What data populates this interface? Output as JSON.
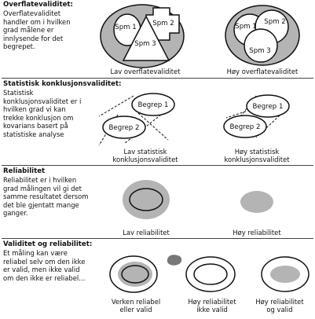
{
  "sections": [
    {
      "heading": "Overflatevaliditet:",
      "body": [
        "Overflatevaliditet",
        "handler om i hvilken",
        "grad målene er",
        "innlysende for det",
        "begrepet."
      ],
      "captions": [
        "Lav overflatevaliditet",
        "Høy overflatevaliditet"
      ],
      "shape_labels": {
        "left": [
          "Spm 1",
          "Spm 2",
          "Spm 3"
        ],
        "right": [
          "Spm 1",
          "Spm 2",
          "Spm 3"
        ]
      }
    },
    {
      "heading": "Statistisk konklusjonsvaliditet:",
      "body": [
        "Statistisk",
        "konklusjonsvaliditet er i",
        "hvilken grad vi kan",
        "trekke konklusjon om",
        "kovarians basert på",
        "statistiske analyse"
      ],
      "captions": [
        [
          "Lav statistisk",
          "konklusjonsvaliditet"
        ],
        [
          "Høy statistisk",
          "konklusjonsvaliditet"
        ]
      ],
      "shape_labels": {
        "left": [
          "Begrep 1",
          "Begrep 2"
        ],
        "right": [
          "Begrep 1",
          "Begrep 2"
        ]
      }
    },
    {
      "heading": "Reliabilitet",
      "body": [
        "Reliabilitet er i hvilken",
        "grad målingen vil gi det",
        "samme resultatet dersom",
        "det ble gjentatt mange",
        "ganger."
      ],
      "captions": [
        "Lav reliabilitet",
        "Høy reliabilitet"
      ]
    },
    {
      "heading": "Validitet og reliabilitet:",
      "body": [
        "Et måling kan være",
        "reliabel selv om den ikke",
        "er valid, men ikke valid",
        "om den ikke er reliabel…"
      ],
      "captions": [
        [
          "Verken reliabel",
          "eller valid"
        ],
        [
          "Høy reliabilitet",
          "ikke valid"
        ],
        [
          "Høy reliabilitet",
          "og valid"
        ]
      ]
    }
  ],
  "colors": {
    "gray": "#b4b4b4",
    "ink": "#111111",
    "rule": "#444444"
  }
}
